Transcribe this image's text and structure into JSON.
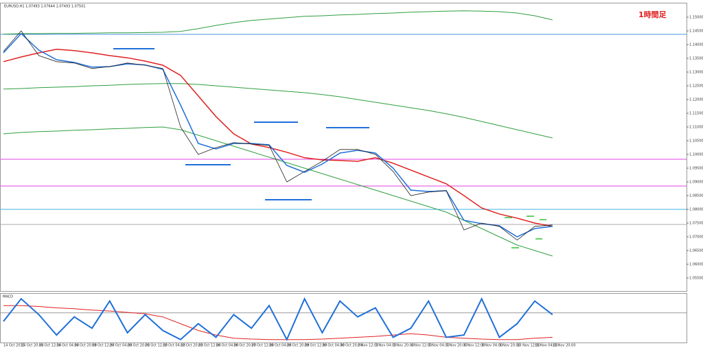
{
  "chart_data": [
    {
      "type": "line",
      "title": "EURUSD,H1 1.07493 1.07644 1.07493 1.07501",
      "annotation": "1時間足",
      "categories": [
        "14 Oct 2015",
        "14 Oct 20:00",
        "15 Oct 12:00",
        "16 Oct 04:00",
        "16 Oct 20:00",
        "19 Oct 12:00",
        "20 Oct 04:00",
        "20 Oct 20:00",
        "21 Oct 12:00",
        "22 Oct 04:00",
        "22 Oct 20:00",
        "23 Oct 12:00",
        "26 Oct 04:00",
        "26 Oct 20:00",
        "27 Oct 12:00",
        "28 Oct 04:00",
        "28 Oct 20:00",
        "29 Oct 12:00",
        "30 Oct 04:00",
        "30 Oct 20:00",
        "2 Nov 12:00",
        "3 Nov 04:00",
        "3 Nov 20:00",
        "4 Nov 12:00",
        "5 Nov 04:00",
        "5 Nov 20:00",
        "6 Nov 12:00",
        "9 Nov 04:00",
        "9 Nov 20:00",
        "10 Nov 12:00",
        "11 Nov 04:00",
        "11 Nov 20:00"
      ],
      "series": [
        {
          "color": "#2e9e3e",
          "width": 1,
          "values": [
            1.1438,
            1.144,
            1.144,
            1.1441,
            1.1441,
            1.1442,
            1.1443,
            1.1443,
            1.1444,
            1.1445,
            1.1448,
            1.1458,
            1.147,
            1.148,
            1.1488,
            1.1493,
            1.1498,
            1.1503,
            1.1505,
            1.1508,
            1.151,
            1.1513,
            1.1515,
            1.1518,
            1.152,
            1.1522,
            1.1523,
            1.1522,
            1.152,
            1.1515,
            1.1505,
            1.149
          ]
        },
        {
          "color": "#2e9e3e",
          "width": 1,
          "values": [
            1.1238,
            1.124,
            1.1243,
            1.1245,
            1.1247,
            1.125,
            1.1252,
            1.1255,
            1.1257,
            1.1258,
            1.1258,
            1.1255,
            1.125,
            1.1245,
            1.124,
            1.1235,
            1.123,
            1.1225,
            1.1218,
            1.121,
            1.12,
            1.119,
            1.118,
            1.117,
            1.116,
            1.1148,
            1.1135,
            1.112,
            1.1105,
            1.109,
            1.1075,
            1.106
          ]
        },
        {
          "color": "#2e9e3e",
          "width": 1,
          "values": [
            1.1075,
            1.108,
            1.1083,
            1.1085,
            1.1088,
            1.109,
            1.1093,
            1.1095,
            1.1098,
            1.11,
            1.109,
            1.107,
            1.105,
            1.103,
            1.101,
            1.099,
            1.097,
            1.095,
            1.093,
            1.091,
            1.089,
            1.087,
            1.085,
            1.083,
            1.081,
            1.079,
            1.076,
            1.073,
            1.07,
            1.067,
            1.065,
            1.063
          ]
        },
        {
          "color": "#e02020",
          "width": 1.5,
          "values": [
            1.1338,
            1.1355,
            1.137,
            1.1383,
            1.1378,
            1.137,
            1.136,
            1.1352,
            1.134,
            1.1325,
            1.1288,
            1.1213,
            1.1138,
            1.1075,
            1.1038,
            1.1025,
            1.1008,
            1.0988,
            1.098,
            1.0978,
            1.0975,
            1.0988,
            1.0968,
            1.0943,
            1.0918,
            1.0893,
            1.085,
            1.0805,
            1.0783,
            1.0768,
            1.075,
            1.0738
          ]
        },
        {
          "color": "#1e6fd9",
          "width": 1.5,
          "values": [
            1.137,
            1.144,
            1.138,
            1.1345,
            1.1335,
            1.1318,
            1.132,
            1.133,
            1.1326,
            1.131,
            1.118,
            1.104,
            1.102,
            1.104,
            1.104,
            1.1035,
            1.096,
            1.0935,
            1.0965,
            1.1005,
            1.1015,
            1.1005,
            1.095,
            1.087,
            1.0865,
            1.0868,
            1.076,
            1.0748,
            1.074,
            1.07,
            1.073,
            1.0738
          ]
        },
        {
          "color": "#222222",
          "width": 0.8,
          "values": [
            1.1375,
            1.145,
            1.136,
            1.1338,
            1.1333,
            1.1313,
            1.132,
            1.1333,
            1.1325,
            1.1313,
            1.11,
            1.1,
            1.1025,
            1.1043,
            1.1038,
            1.1033,
            1.09,
            1.0938,
            1.0975,
            1.1018,
            1.1018,
            1.1,
            1.0938,
            1.085,
            1.0863,
            1.0868,
            1.0725,
            1.075,
            1.0738,
            1.0688,
            1.0738,
            1.0743
          ]
        }
      ],
      "hlines": [
        {
          "value": 1.14375,
          "color": "#4a90e2"
        },
        {
          "value": 1.09825,
          "color": "#e040e0"
        },
        {
          "value": 1.0885,
          "color": "#e040e0"
        },
        {
          "value": 1.08,
          "color": "#40b0e0"
        },
        {
          "value": 1.0745,
          "color": "#aaaaaa"
        }
      ],
      "ylim": [
        1.05,
        1.155
      ],
      "yticks": [
        {
          "value": 1.055,
          "label": "1.05500"
        },
        {
          "value": 1.06,
          "label": "1.06000"
        },
        {
          "value": 1.065,
          "label": "1.06500"
        },
        {
          "value": 1.07,
          "label": "1.07000"
        },
        {
          "value": 1.075,
          "label": "1.07500"
        },
        {
          "value": 1.08,
          "label": "1.08000"
        },
        {
          "value": 1.085,
          "label": "1.08500"
        },
        {
          "value": 1.09,
          "label": "1.09000"
        },
        {
          "value": 1.095,
          "label": "1.09500"
        },
        {
          "value": 1.1,
          "label": "1.10000"
        },
        {
          "value": 1.105,
          "label": "1.10500"
        },
        {
          "value": 1.11,
          "label": "1.11000"
        },
        {
          "value": 1.115,
          "label": "1.11500"
        },
        {
          "value": 1.12,
          "label": "1.12000"
        },
        {
          "value": 1.125,
          "label": "1.12500"
        },
        {
          "value": 1.13,
          "label": "1.13000"
        },
        {
          "value": 1.135,
          "label": "1.13500"
        },
        {
          "value": 1.14,
          "label": "1.14000"
        },
        {
          "value": 1.145,
          "label": "1.14500"
        },
        {
          "value": 1.15,
          "label": "1.15000"
        }
      ]
    },
    {
      "type": "line",
      "title": "MACD",
      "series": [
        {
          "color": "#e02020",
          "width": 1,
          "values": [
            80,
            80,
            78,
            75,
            73,
            70,
            68,
            65,
            62,
            55,
            40,
            25,
            15,
            8,
            6,
            5,
            5,
            5,
            6,
            8,
            10,
            12,
            15,
            18,
            15,
            10,
            8,
            6,
            5,
            5,
            8,
            10
          ]
        },
        {
          "color": "#1e6fd9",
          "width": 2,
          "values": [
            45,
            95,
            60,
            15,
            55,
            30,
            90,
            20,
            60,
            25,
            5,
            40,
            10,
            60,
            30,
            80,
            5,
            95,
            20,
            90,
            55,
            75,
            10,
            30,
            90,
            10,
            15,
            95,
            10,
            40,
            90,
            60
          ]
        }
      ],
      "hlines": [
        {
          "value": 64,
          "color": "#999999"
        }
      ],
      "ylim": [
        0,
        100
      ]
    }
  ]
}
